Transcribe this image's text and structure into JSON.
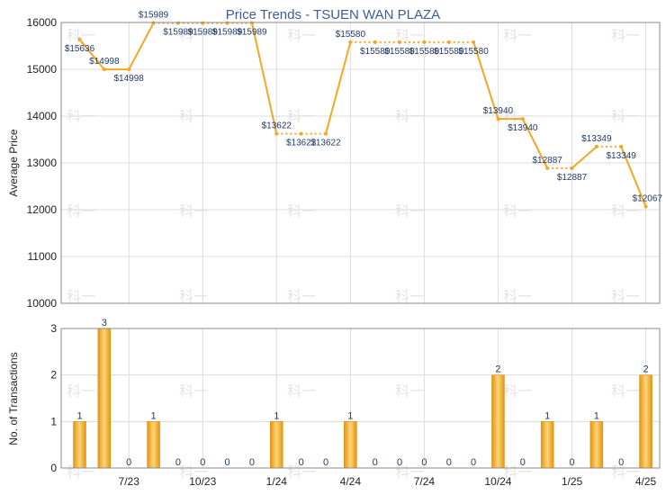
{
  "title": "Price Trends - TSUEN WAN PLAZA",
  "watermark_text": "科一",
  "colors": {
    "line": "#f5a623",
    "bar_dark": "#e8920c",
    "bar_light": "#fbd67a",
    "grid": "#dcdcdc",
    "frame": "#8a8a8a",
    "label": "#1f3a66"
  },
  "chart_data": [
    {
      "type": "line",
      "ylabel": "Average Price",
      "ylim": [
        10000,
        16000
      ],
      "yticks": [
        "10000",
        "11000",
        "12000",
        "13000",
        "14000",
        "15000",
        "16000"
      ],
      "xtick_labels": [
        "7/23",
        "10/23",
        "1/24",
        "4/24",
        "7/24",
        "10/24",
        "1/25",
        "4/25"
      ],
      "grid": true,
      "values": [
        15636,
        14998,
        14998,
        15989,
        15989,
        15989,
        15989,
        15989,
        13622,
        13622,
        13622,
        15580,
        15580,
        15580,
        15580,
        15580,
        15580,
        13940,
        13940,
        12887,
        12887,
        13349,
        13349,
        12067
      ],
      "labels": [
        "$15636",
        "$14998",
        "$14998",
        "$15989",
        "$15989",
        "$15989",
        "$15989",
        "$15989",
        "$13622",
        "$13622",
        "$13622",
        "$15580",
        "$15580",
        "$15580",
        "$15580",
        "$15580",
        "$15580",
        "$13940",
        "$13940",
        "$12887",
        "$12887",
        "$13349",
        "$13349",
        "$12067"
      ],
      "interpolated": [
        false,
        false,
        false,
        false,
        true,
        false,
        true,
        false,
        false,
        true,
        false,
        false,
        true,
        false,
        true,
        false,
        true,
        false,
        false,
        false,
        true,
        false,
        true,
        false
      ]
    },
    {
      "type": "bar",
      "ylabel": "No. of Transactions",
      "ylim": [
        0,
        3
      ],
      "yticks": [
        "0",
        "1",
        "2",
        "3"
      ],
      "xtick_labels": [
        "7/23",
        "10/23",
        "1/24",
        "4/24",
        "7/24",
        "10/24",
        "1/25",
        "4/25"
      ],
      "grid": true,
      "values": [
        1,
        3,
        0,
        1,
        0,
        0,
        0,
        0,
        1,
        0,
        0,
        1,
        0,
        0,
        0,
        0,
        0,
        2,
        0,
        1,
        0,
        1,
        0,
        2
      ],
      "labels": [
        "1",
        "3",
        "0",
        "1",
        "0",
        "0",
        "0",
        "0",
        "1",
        "0",
        "0",
        "1",
        "0",
        "0",
        "0",
        "0",
        "0",
        "2",
        "0",
        "1",
        "0",
        "1",
        "0",
        "2"
      ]
    }
  ]
}
